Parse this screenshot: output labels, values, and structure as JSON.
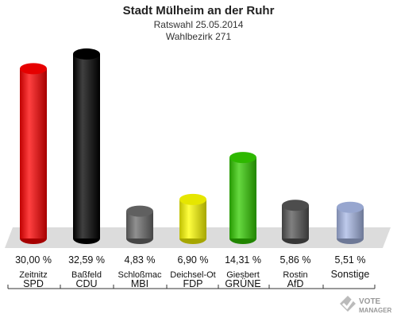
{
  "title": "Stadt Mülheim an der Ruhr",
  "subtitle_1": "Ratswahl 25.05.2014",
  "subtitle_2": "Wahlbezirk 271",
  "logo_text": "VOTE MANAGER",
  "chart_data": {
    "type": "bar",
    "title": "Stadt Mülheim an der Ruhr",
    "subtitle": [
      "Ratswahl 25.05.2014",
      "Wahlbezirk 271"
    ],
    "categories": [
      "SPD",
      "CDU",
      "MBI",
      "FDP",
      "GRÜNE",
      "AfD",
      "Sonstige"
    ],
    "candidates": [
      "Zeitnitz",
      "Baßfeld",
      "Schloßmac",
      "Deichsel-Ot",
      "Giesbert",
      "Rostin",
      ""
    ],
    "values": [
      30.0,
      32.59,
      4.83,
      6.9,
      14.31,
      5.86,
      5.51
    ],
    "value_labels": [
      "30,00 %",
      "32,59 %",
      "4,83 %",
      "6,90 %",
      "14,31 %",
      "5,86 %",
      "5,51 %"
    ],
    "colors": [
      "#ff0000",
      "#000000",
      "#6b6b6b",
      "#ffff00",
      "#33cc00",
      "#555555",
      "#a8b8e6"
    ],
    "ylim": [
      0,
      33
    ],
    "grid": false,
    "legend": "none"
  }
}
